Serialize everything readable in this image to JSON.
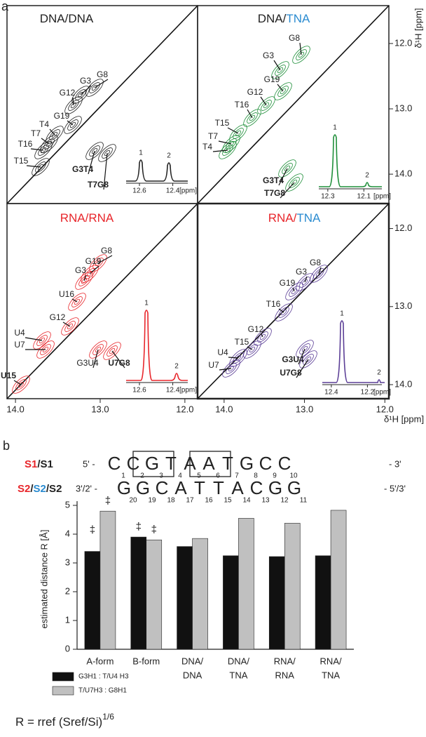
{
  "panel_a": {
    "label": "a",
    "axis_label": "δ¹H [ppm]",
    "x_ticks": [
      {
        "value": 14,
        "label": "14.0"
      },
      {
        "value": 13,
        "label": "13.0"
      },
      {
        "value": 12,
        "label": "12.0"
      }
    ],
    "y_ticks": [
      {
        "value": 12,
        "label": "12.0"
      },
      {
        "value": 13,
        "label": "13.0"
      },
      {
        "value": 14,
        "label": "14.0"
      }
    ],
    "spectra": [
      {
        "title": [
          {
            "text": "DNA/DNA",
            "color": "#222222"
          }
        ],
        "color": "#222222",
        "xlim": [
          14.1,
          11.85
        ],
        "ylim": [
          11.42,
          14.45
        ],
        "peaks": [
          "G8",
          "G3",
          "G12",
          "G19",
          "T4",
          "T7",
          "T16",
          "T15",
          "G3T4",
          "T7G8"
        ],
        "inset": {
          "peak_labels": [
            "1",
            "2"
          ],
          "xlim": [
            12.68,
            12.31
          ],
          "ticks": [
            12.6,
            12.4
          ],
          "unit": "[ppm]"
        }
      },
      {
        "title": [
          {
            "text": "DNA/",
            "color": "#222222"
          },
          {
            "text": "TNA",
            "color": "#2a8bd0"
          }
        ],
        "color": "#1f8f3a",
        "xlim": [
          14.33,
          11.95
        ],
        "ylim": [
          11.42,
          14.45
        ],
        "peaks": [
          "G8",
          "G3",
          "G19",
          "G12",
          "T16",
          "T15",
          "T7",
          "T4",
          "G3T4",
          "T7G8"
        ],
        "inset": {
          "peak_labels": [
            "1",
            "2"
          ],
          "xlim": [
            12.35,
            12.0
          ],
          "ticks": [
            12.3,
            12.1
          ],
          "unit": "[ppm]"
        }
      },
      {
        "title": [
          {
            "text": "RNA/RNA",
            "color": "#e8262b"
          }
        ],
        "color": "#e8262b",
        "xlim": [
          14.1,
          11.85
        ],
        "ylim": [
          11.68,
          14.18
        ],
        "peaks": [
          "G8",
          "G19",
          "G3",
          "U16",
          "G12",
          "U4",
          "U7",
          "G3U4",
          "U7G8",
          "U15"
        ],
        "inset": {
          "peak_labels": [
            "1",
            "2"
          ],
          "xlim": [
            12.68,
            12.31
          ],
          "ticks": [
            12.6,
            12.4
          ],
          "unit": "[ppm]"
        }
      },
      {
        "title": [
          {
            "text": "RNA/",
            "color": "#e8262b"
          },
          {
            "text": "TNA",
            "color": "#2a8bd0"
          }
        ],
        "color": "#5b3e96",
        "xlim": [
          14.33,
          11.95
        ],
        "ylim": [
          11.68,
          14.18
        ],
        "peaks": [
          "G8",
          "G3",
          "G19",
          "T16",
          "G12",
          "T15",
          "U4",
          "U7",
          "G3U4",
          "U7G8"
        ],
        "inset": {
          "peak_labels": [
            "1",
            "2"
          ],
          "xlim": [
            12.45,
            12.12
          ],
          "ticks": [
            12.4,
            12.2
          ],
          "unit": "[ppm]"
        }
      }
    ]
  },
  "panel_b": {
    "label": "b",
    "sequence": [
      {
        "name": [
          {
            "text": "S1",
            "color": "#e8262b"
          },
          {
            "text": "/S1",
            "color": "#222222"
          }
        ],
        "start": "5' -",
        "bases": [
          "C",
          "C",
          "G",
          "T",
          "A",
          "A",
          "T",
          "G",
          "C",
          "C"
        ],
        "numbers": [
          1,
          2,
          3,
          4,
          5,
          6,
          7,
          8,
          9,
          10
        ],
        "end": "- 3'"
      },
      {
        "name": [
          {
            "text": "S2",
            "color": "#e8262b"
          },
          {
            "text": "/",
            "color": "#222222"
          },
          {
            "text": "S2",
            "color": "#2a8bd0"
          },
          {
            "text": "/S2",
            "color": "#222222"
          }
        ],
        "start": "3'/2' -",
        "bases": [
          "G",
          "G",
          "C",
          "A",
          "T",
          "T",
          "A",
          "C",
          "G",
          "G"
        ],
        "numbers": [
          20,
          19,
          18,
          17,
          16,
          15,
          14,
          13,
          12,
          11
        ],
        "end": "- 5'/3'"
      }
    ],
    "chart_data": {
      "type": "bar",
      "y_label": "estimated distance R [Å]",
      "categories": [
        [
          {
            "text": "A-form",
            "color": "#222222"
          }
        ],
        [
          {
            "text": "B-form",
            "color": "#222222"
          }
        ],
        [
          {
            "text": "DNA/",
            "color": "#222222"
          },
          {
            "text": "DNA",
            "color": "#222222"
          }
        ],
        [
          {
            "text": "DNA/",
            "color": "#222222"
          },
          {
            "text": "TNA",
            "color": "#2a8bd0"
          }
        ],
        [
          {
            "text": "RNA/",
            "color": "#e8262b"
          },
          {
            "text": "RNA",
            "color": "#e8262b"
          }
        ],
        [
          {
            "text": "RNA/",
            "color": "#e8262b"
          },
          {
            "text": "TNA",
            "color": "#2a8bd0"
          }
        ]
      ],
      "series": [
        {
          "name": "G3H1 : T/U4 H3",
          "color": "#111111",
          "values": [
            3.4,
            3.9,
            3.57,
            3.25,
            3.22,
            3.25
          ]
        },
        {
          "name": "T/U7H3 : G8H1",
          "color": "#c0c0c0",
          "values": [
            4.8,
            3.8,
            3.85,
            4.55,
            4.38,
            4.83
          ]
        }
      ],
      "annotations": [
        "‡",
        "‡",
        "‡",
        "‡"
      ],
      "ylim": [
        0,
        5
      ],
      "yticks": [
        0,
        1,
        2,
        3,
        4,
        5
      ],
      "formula": "R = rref (Sref/Si)",
      "formula_exponent": "1/6"
    }
  }
}
